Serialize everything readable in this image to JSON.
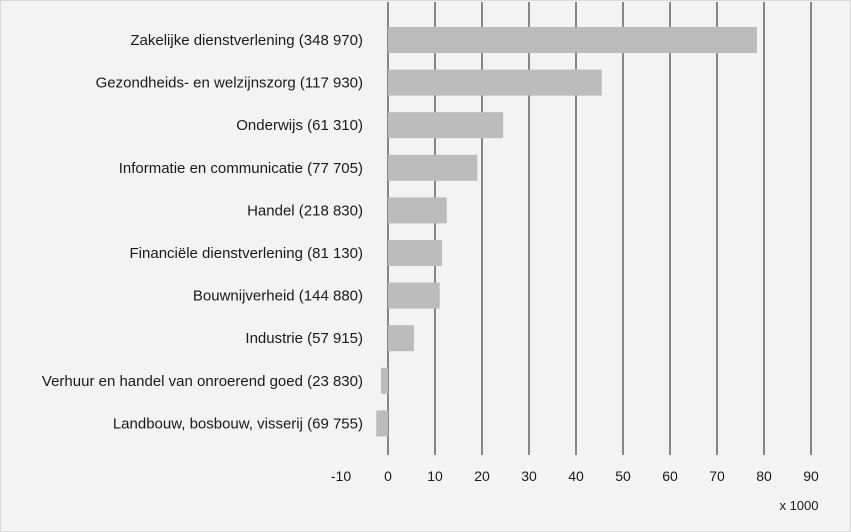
{
  "chart_data": {
    "type": "bar",
    "orientation": "horizontal",
    "categories": [
      "Zakelijke dienstverlening (348 970)",
      "Gezondheids- en welzijnszorg (117 930)",
      "Onderwijs (61 310)",
      "Informatie en communicatie (77 705)",
      "Handel (218 830)",
      "Financiële dienstverlening (81 130)",
      "Bouwnijverheid (144 880)",
      "Industrie (57 915)",
      "Verhuur en handel van onroerend goed (23 830)",
      "Landbouw, bosbouw, visserij (69 755)"
    ],
    "values": [
      78.5,
      45.5,
      24.5,
      19,
      12.5,
      11.5,
      11,
      5.5,
      -1.5,
      -2.5
    ],
    "xlim": [
      -10,
      90
    ],
    "xticks": [
      "-10",
      "0",
      "10",
      "20",
      "30",
      "40",
      "50",
      "60",
      "70",
      "80",
      "90"
    ],
    "xticks_values": [
      -10,
      0,
      10,
      20,
      30,
      40,
      50,
      60,
      70,
      80,
      90
    ],
    "unit_label": "x 1000",
    "grid": "vertical",
    "bar_color": "#bcbcbc",
    "grid_color": "#1a1a1a"
  }
}
